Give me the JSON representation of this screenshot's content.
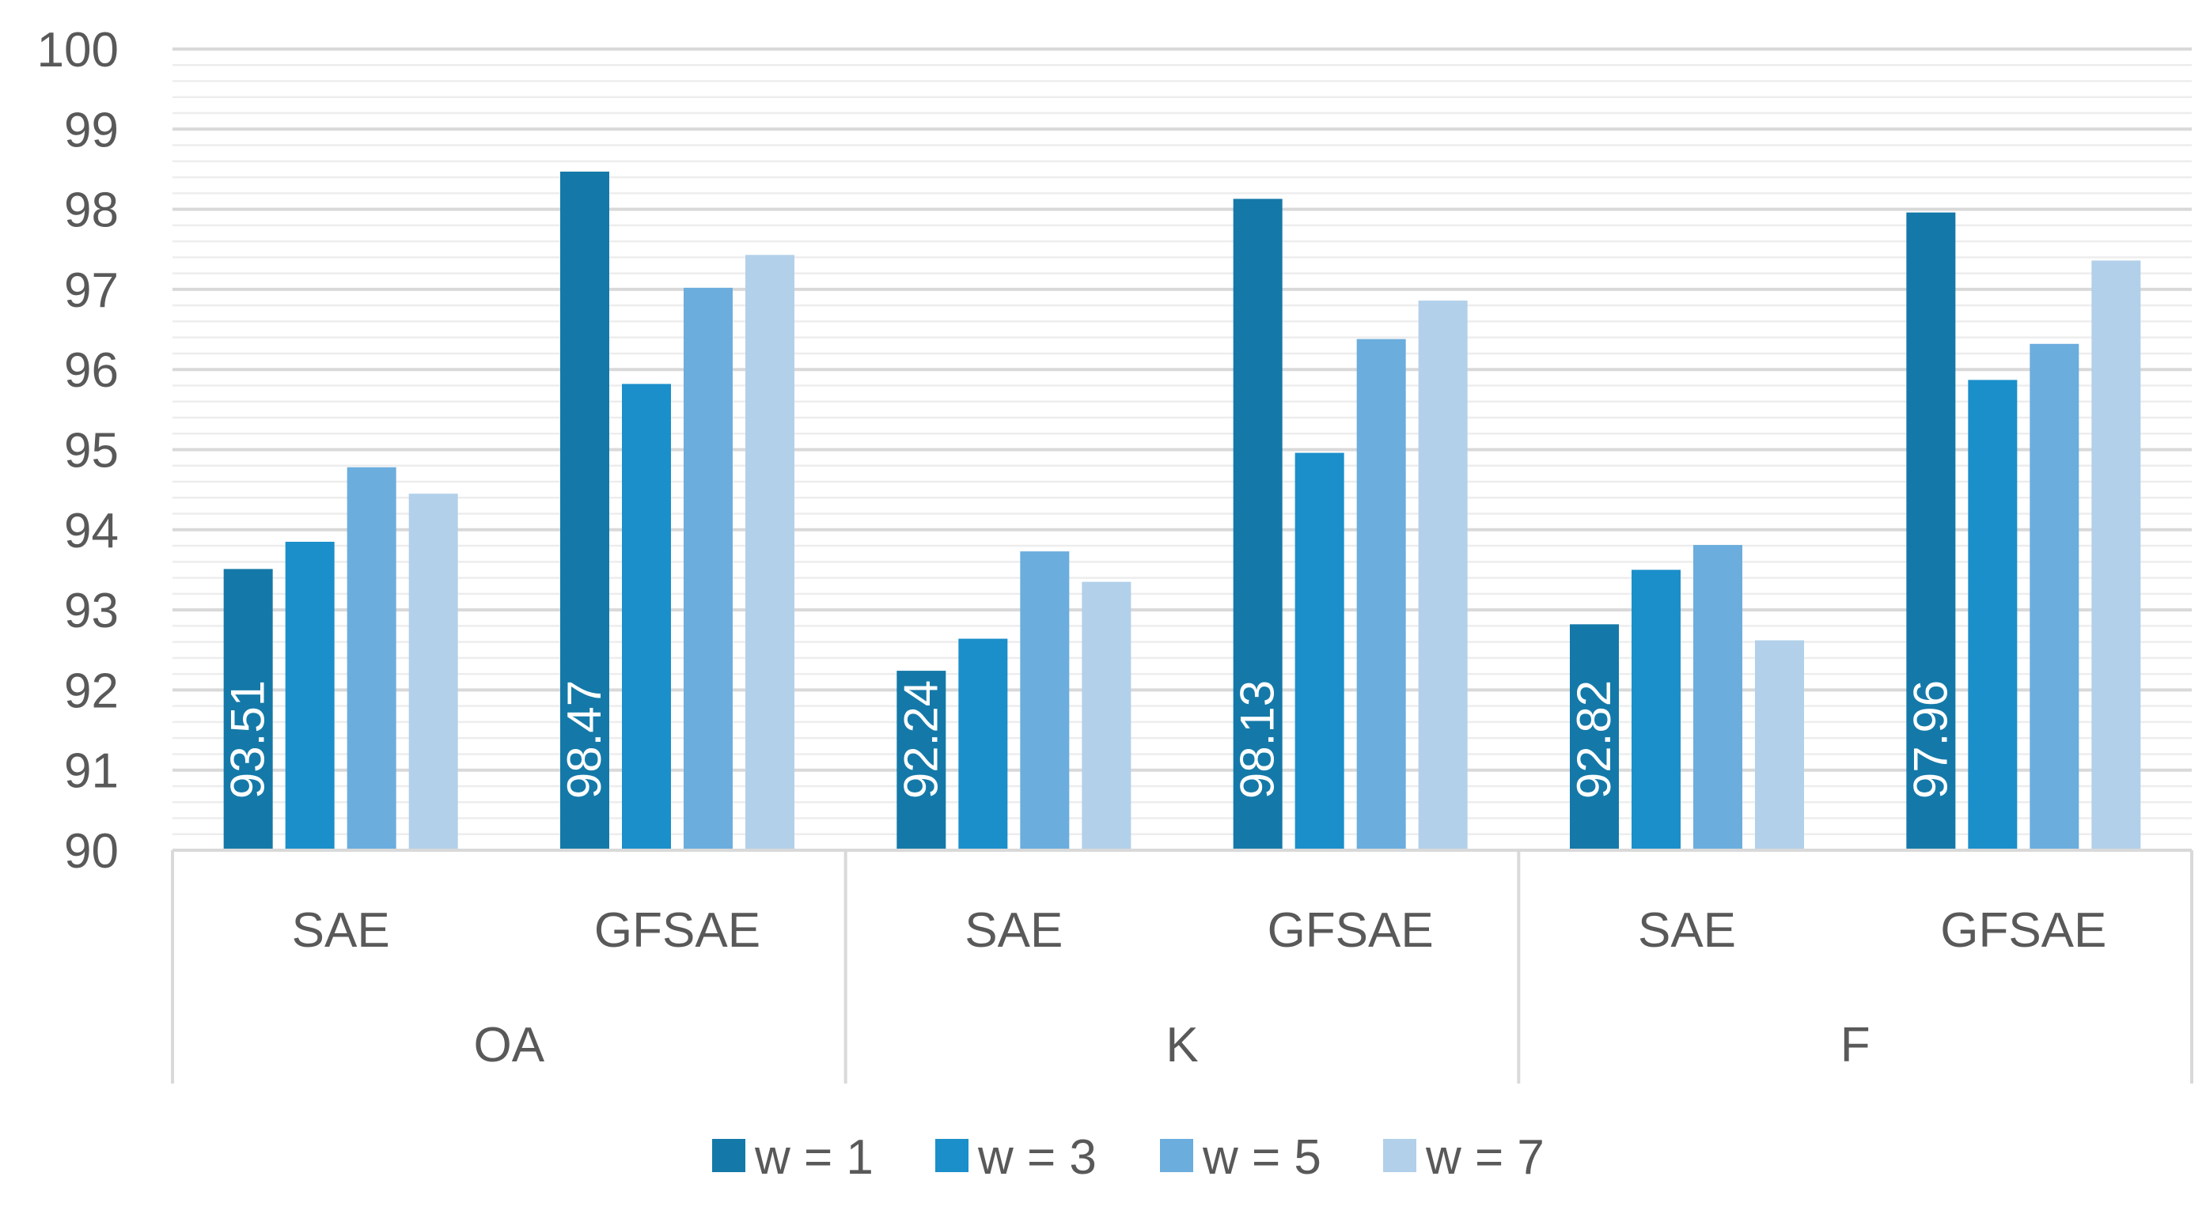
{
  "chart_data": {
    "type": "bar",
    "title": "",
    "xlabel": "",
    "ylabel": "",
    "ylim": [
      90,
      100
    ],
    "yticks": [
      90,
      91,
      92,
      93,
      94,
      95,
      96,
      97,
      98,
      99,
      100
    ],
    "minor_grid_step": 0.2,
    "grid": true,
    "legend_position": "bottom",
    "groups": [
      {
        "label": "OA",
        "categories": [
          "SAE",
          "GFSAE"
        ]
      },
      {
        "label": "K",
        "categories": [
          "SAE",
          "GFSAE"
        ]
      },
      {
        "label": "F",
        "categories": [
          "SAE",
          "GFSAE"
        ]
      }
    ],
    "categories": [
      "OA / SAE",
      "OA / GFSAE",
      "K / SAE",
      "K / GFSAE",
      "F / SAE",
      "F / GFSAE"
    ],
    "series": [
      {
        "name": "w = 1",
        "color": "#1479A8",
        "values": [
          93.51,
          98.47,
          92.24,
          98.13,
          92.82,
          97.96
        ]
      },
      {
        "name": "w = 3",
        "color": "#1B8FCA",
        "values": [
          93.85,
          95.82,
          92.64,
          94.96,
          93.5,
          95.87
        ]
      },
      {
        "name": "w = 5",
        "color": "#6BADDD",
        "values": [
          94.78,
          97.02,
          93.73,
          96.38,
          93.81,
          96.32
        ]
      },
      {
        "name": "w = 7",
        "color": "#B2D0EA",
        "values": [
          94.45,
          97.43,
          93.35,
          96.86,
          92.62,
          97.36
        ]
      }
    ],
    "data_labels": {
      "series": "w = 1",
      "labels": [
        "93.51",
        "98.47",
        "92.24",
        "98.13",
        "92.82",
        "97.96"
      ]
    }
  },
  "colors": {
    "axis_text": "#595959",
    "major_grid": "#D9D9D9",
    "minor_grid": "#EDEDED",
    "axis_line": "#D9D9D9",
    "label_text": "#FFFFFF"
  }
}
